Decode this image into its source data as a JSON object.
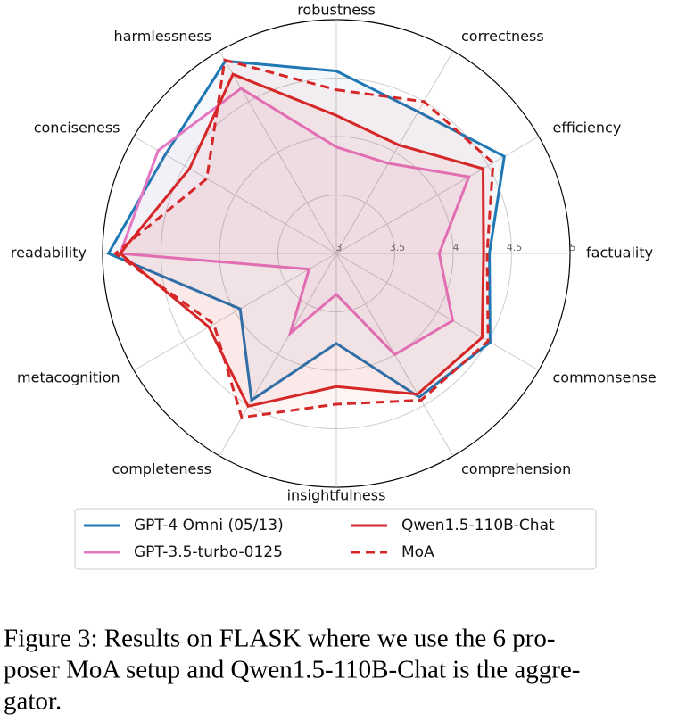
{
  "chart_data": {
    "type": "radar",
    "categories": [
      "robustness",
      "correctness",
      "efficiency",
      "factuality",
      "commonsense",
      "comprehension",
      "insightfulness",
      "completeness",
      "metacognition",
      "readability",
      "conciseness",
      "harmlessness"
    ],
    "ylim": [
      3,
      5
    ],
    "yticks": [
      3,
      3.5,
      4,
      4.5,
      5
    ],
    "grid": true,
    "legend": "bottom",
    "series": [
      {
        "name": "GPT-4 Omni (05/13)",
        "color": "#1f77b4",
        "linestyle": "solid",
        "values": [
          4.56,
          4.4,
          4.66,
          4.31,
          4.52,
          4.42,
          3.77,
          4.45,
          3.95,
          4.95,
          4.69,
          4.9
        ]
      },
      {
        "name": "GPT-3.5-turbo-0125",
        "color": "#e377c2",
        "linestyle": "solid",
        "values": [
          3.91,
          3.89,
          4.31,
          3.88,
          4.15,
          4.0,
          3.35,
          3.79,
          3.27,
          4.85,
          4.76,
          4.63
        ]
      },
      {
        "name": "Qwen1.5-110B-Chat",
        "color": "#d62728",
        "linestyle": "solid",
        "values": [
          4.18,
          4.07,
          4.45,
          4.26,
          4.44,
          4.39,
          4.14,
          4.51,
          4.26,
          4.85,
          4.45,
          4.77
        ]
      },
      {
        "name": "MoA",
        "color": "#d62728",
        "linestyle": "dashed",
        "values": [
          4.4,
          4.5,
          4.55,
          4.29,
          4.5,
          4.45,
          4.29,
          4.62,
          4.21,
          4.89,
          4.28,
          4.91
        ]
      }
    ]
  },
  "caption": {
    "lines": [
      "Figure 3: Results on FLASK where we use the 6 pro-",
      "poser MoA setup and Qwen1.5-110B-Chat is the aggre-",
      "gator."
    ]
  }
}
